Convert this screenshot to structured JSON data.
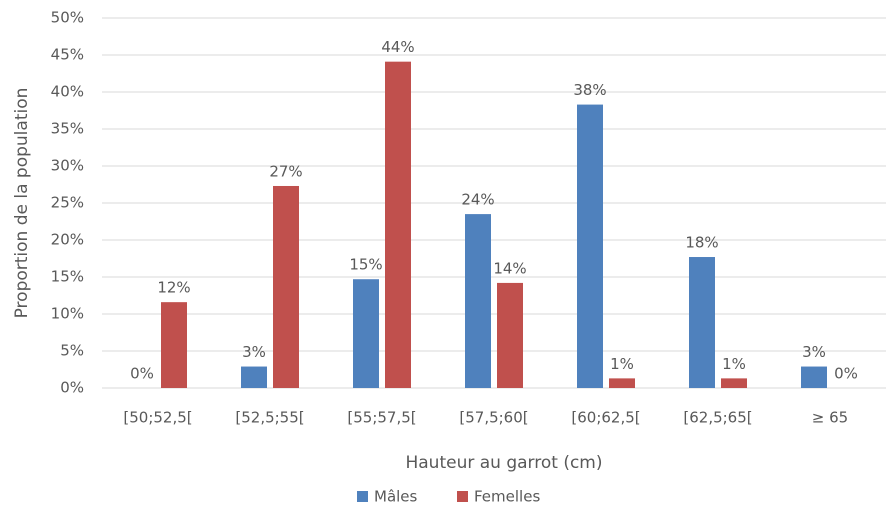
{
  "chart_data": {
    "type": "bar",
    "x_label": "Hauteur au garrot (cm)",
    "y_label": "Proportion de la population",
    "categories": [
      "[50;52,5[",
      "[52,5;55[",
      "[55;57,5[",
      "[57,5;60[",
      "[60;62,5[",
      "[62,5;65[",
      "≥ 65"
    ],
    "series": [
      {
        "name": "Mâles",
        "color": "#4f81bd",
        "values": [
          0,
          2.9,
          14.7,
          23.5,
          38.3,
          17.7,
          2.9
        ],
        "value_labels": [
          "0%",
          "3%",
          "15%",
          "24%",
          "38%",
          "18%",
          "3%"
        ]
      },
      {
        "name": "Femelles",
        "color": "#c0504d",
        "values": [
          11.6,
          27.3,
          44.1,
          14.2,
          1.3,
          1.3,
          0
        ],
        "value_labels": [
          "12%",
          "27%",
          "44%",
          "14%",
          "1%",
          "1%",
          "0%"
        ]
      }
    ],
    "ylim": [
      0,
      50
    ],
    "yticks": [
      {
        "value": 0,
        "label": "0%"
      },
      {
        "value": 5,
        "label": "5%"
      },
      {
        "value": 10,
        "label": "10%"
      },
      {
        "value": 15,
        "label": "15%"
      },
      {
        "value": 20,
        "label": "20%"
      },
      {
        "value": 25,
        "label": "25%"
      },
      {
        "value": 30,
        "label": "30%"
      },
      {
        "value": 35,
        "label": "35%"
      },
      {
        "value": 40,
        "label": "40%"
      },
      {
        "value": 45,
        "label": "45%"
      },
      {
        "value": 50,
        "label": "50%"
      }
    ],
    "grid": true,
    "legend": "bottom"
  }
}
